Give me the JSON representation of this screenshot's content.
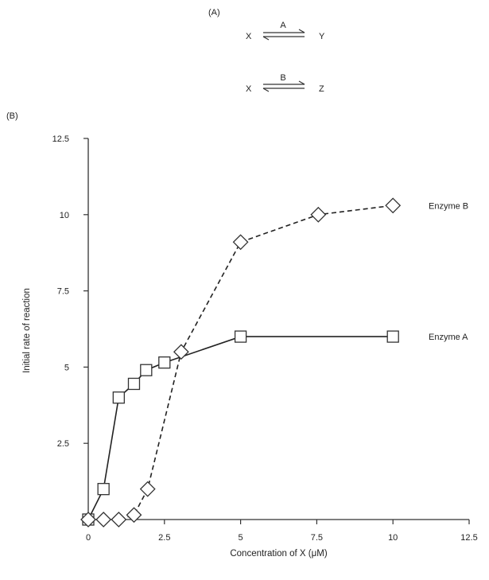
{
  "panel_a": {
    "label": "(A)",
    "reactions": [
      {
        "substrate": "X",
        "enzyme": "A",
        "product": "Y"
      },
      {
        "substrate": "X",
        "enzyme": "B",
        "product": "Z"
      }
    ]
  },
  "panel_b": {
    "label": "(B)"
  },
  "chart_data": {
    "type": "line",
    "title": "",
    "xlabel": "Concentration of X (μM)",
    "ylabel": "Initial rate of reaction",
    "xlim": [
      0,
      12.5
    ],
    "ylim": [
      0,
      12.5
    ],
    "xticks": [
      0,
      2.5,
      5,
      7.5,
      10,
      12.5
    ],
    "yticks": [
      2.5,
      5,
      7.5,
      10,
      12.5
    ],
    "xtick_labels": [
      "0",
      "2.5",
      "5",
      "7.5",
      "10",
      "12.5"
    ],
    "ytick_labels": [
      "2.5",
      "5",
      "7.5",
      "10",
      "12.5"
    ],
    "grid": false,
    "legend": "labels at right end of each series",
    "series": [
      {
        "name": "Enzyme A",
        "marker": "square",
        "line": "solid",
        "x": [
          0,
          0.5,
          1,
          1.5,
          1.9,
          2.5,
          5,
          10
        ],
        "y": [
          0,
          1,
          4,
          4.45,
          4.9,
          5.15,
          6,
          6
        ]
      },
      {
        "name": "Enzyme B",
        "marker": "diamond",
        "line": "dashed",
        "x": [
          0,
          0.5,
          1,
          1.5,
          1.95,
          3.05,
          5,
          7.55,
          10
        ],
        "y": [
          0,
          0,
          0,
          0.15,
          1,
          5.5,
          9.1,
          10,
          10.3
        ]
      }
    ]
  }
}
